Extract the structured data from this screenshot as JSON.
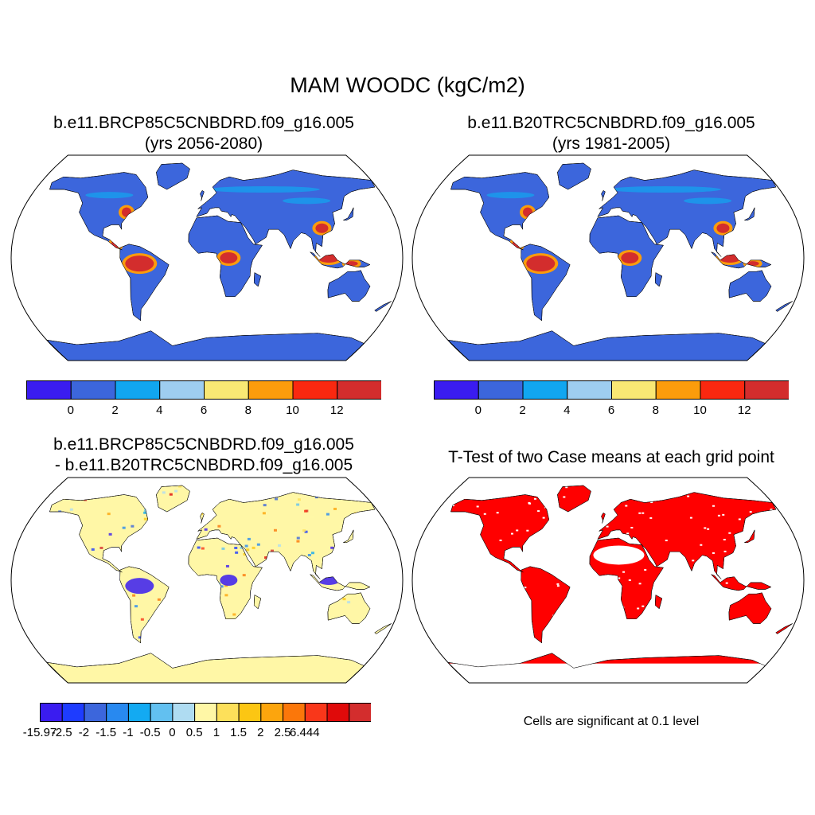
{
  "figure": {
    "title": "MAM WOODC (kgC/m2)"
  },
  "panels": {
    "case1": {
      "title_line1": "b.e11.BRCP85C5CNBDRD.f09_g16.005",
      "title_line2": "(yrs 2056-2080)"
    },
    "case2": {
      "title_line1": "b.e11.B20TRC5CNBDRD.f09_g16.005",
      "title_line2": "(yrs 1981-2005)"
    },
    "diff": {
      "title_line1": "b.e11.BRCP85C5CNBDRD.f09_g16.005",
      "title_line2": "- b.e11.B20TRC5CNBDRD.f09_g16.005"
    },
    "ttest": {
      "title": "T-Test of two Case means at each grid point",
      "note": "Cells are significant at 0.1 level"
    }
  },
  "colorbars": {
    "abs": {
      "colors": [
        "#3a1cf0",
        "#3c66dc",
        "#11a6f0",
        "#9ecdf0",
        "#f9e874",
        "#fb9c0c",
        "#fa2810",
        "#d32d2d"
      ],
      "labels": [
        "0",
        "2",
        "4",
        "6",
        "8",
        "10",
        "12"
      ]
    },
    "diff": {
      "colors": [
        "#3a1cf0",
        "#1e3cff",
        "#3c66dc",
        "#2889f0",
        "#13aaf2",
        "#62c0f0",
        "#afdcf2",
        "#fff7a6",
        "#fde05a",
        "#fcc613",
        "#fca50d",
        "#fb770a",
        "#f9371a",
        "#e00a0a",
        "#d32d2d"
      ],
      "labels": [
        "-15.97",
        "-2.5",
        "-2",
        "-1.5",
        "-1",
        "-0.5",
        "0",
        "0.5",
        "1",
        "1.5",
        "2",
        "2.5",
        "6.444"
      ]
    }
  },
  "map_colors": {
    "land_low": "#3c66dc",
    "land_high": "#d32d2d",
    "diff_base": "#fff7a6",
    "significant": "#ff0000"
  }
}
